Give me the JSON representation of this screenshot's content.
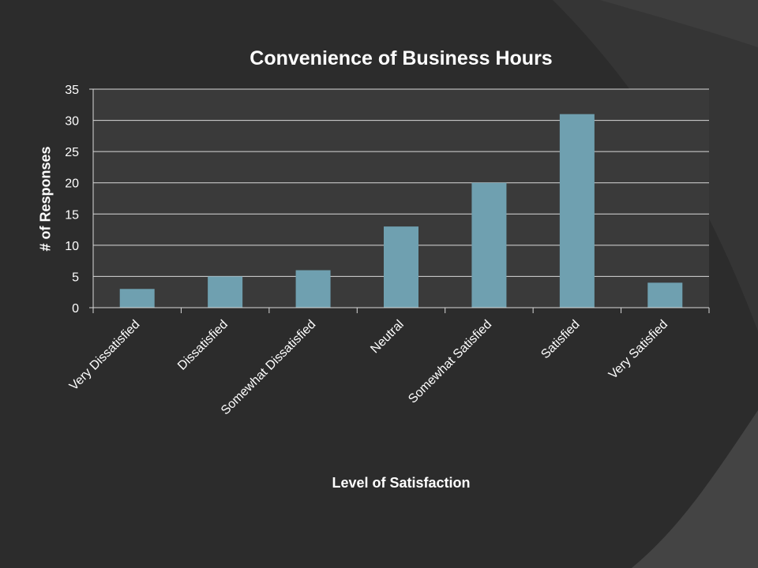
{
  "colors": {
    "background": "#2c2c2c",
    "plot_area": "#3a3a3a",
    "bar": "#6fa0b0",
    "gridline": "#d9d9d9",
    "text": "#ffffff"
  },
  "chart_data": {
    "type": "bar",
    "title": "Convenience of Business Hours",
    "xlabel": "Level of Satisfaction",
    "ylabel": "# of Responses",
    "categories": [
      "Very Dissatisfied",
      "Dissatisfied",
      "Somewhat Dissatisfied",
      "Neutral",
      "Somewhat Satisfied",
      "Satisfied",
      "Very Satisfied"
    ],
    "values": [
      3,
      5,
      6,
      13,
      20,
      31,
      4
    ],
    "ylim": [
      0,
      35
    ],
    "yticks": [
      "0",
      "5",
      "10",
      "15",
      "20",
      "25",
      "30",
      "35"
    ],
    "grid": true,
    "legend": "none"
  }
}
